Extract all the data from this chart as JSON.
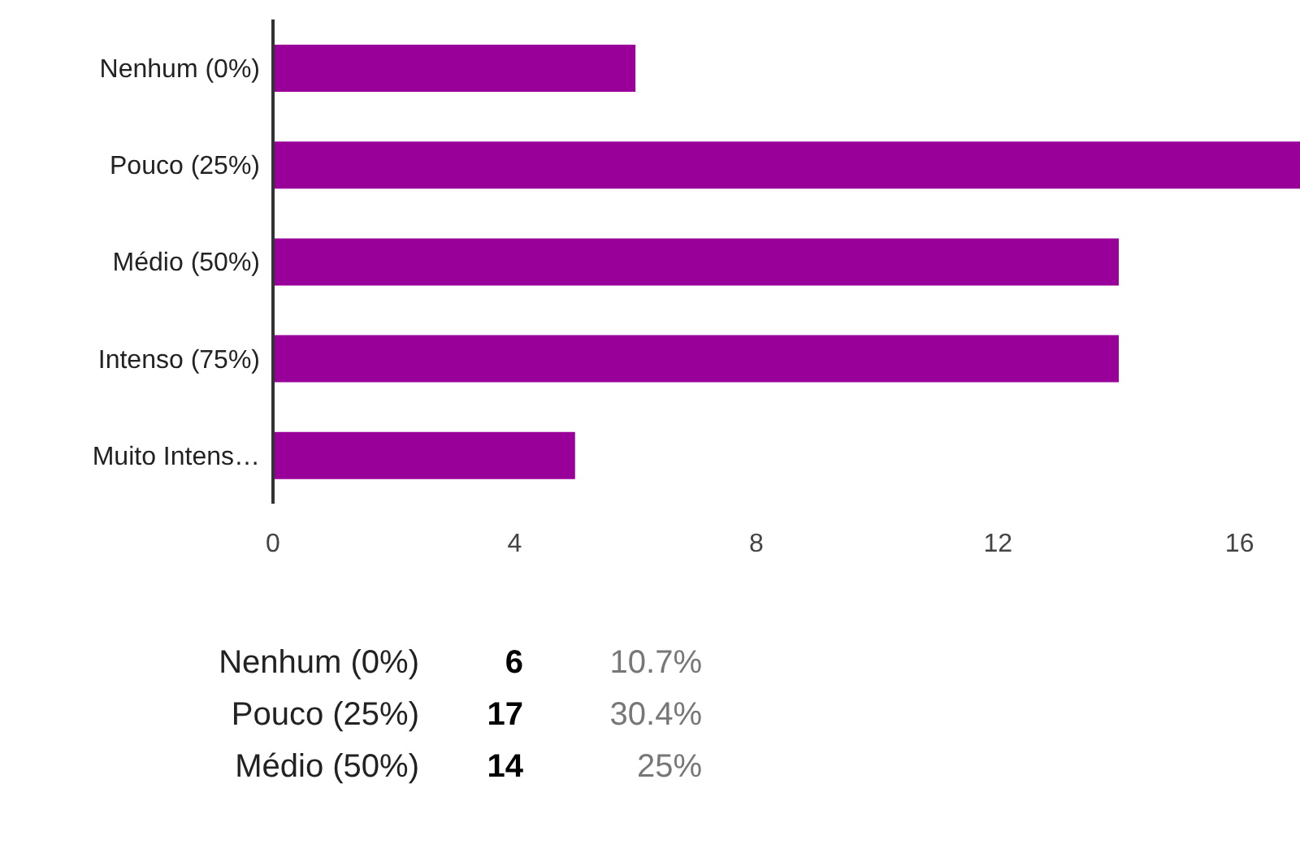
{
  "chart_data": {
    "type": "bar",
    "orientation": "horizontal",
    "categories": [
      "Nenhum (0%)",
      "Pouco (25%)",
      "Médio (50%)",
      "Intenso (75%)",
      "Muito Intens…"
    ],
    "values": [
      6,
      17,
      14,
      14,
      5
    ],
    "color": "#990099",
    "xlim": [
      0,
      17
    ],
    "xticks": [
      0,
      4,
      8,
      12,
      16
    ],
    "grid": false,
    "annotations": [
      "Nenhum (0%)",
      "6",
      "10.7%",
      "Pouco (25%)",
      "17",
      "30.4%",
      "Médio (50%)",
      "14",
      "25%"
    ]
  }
}
